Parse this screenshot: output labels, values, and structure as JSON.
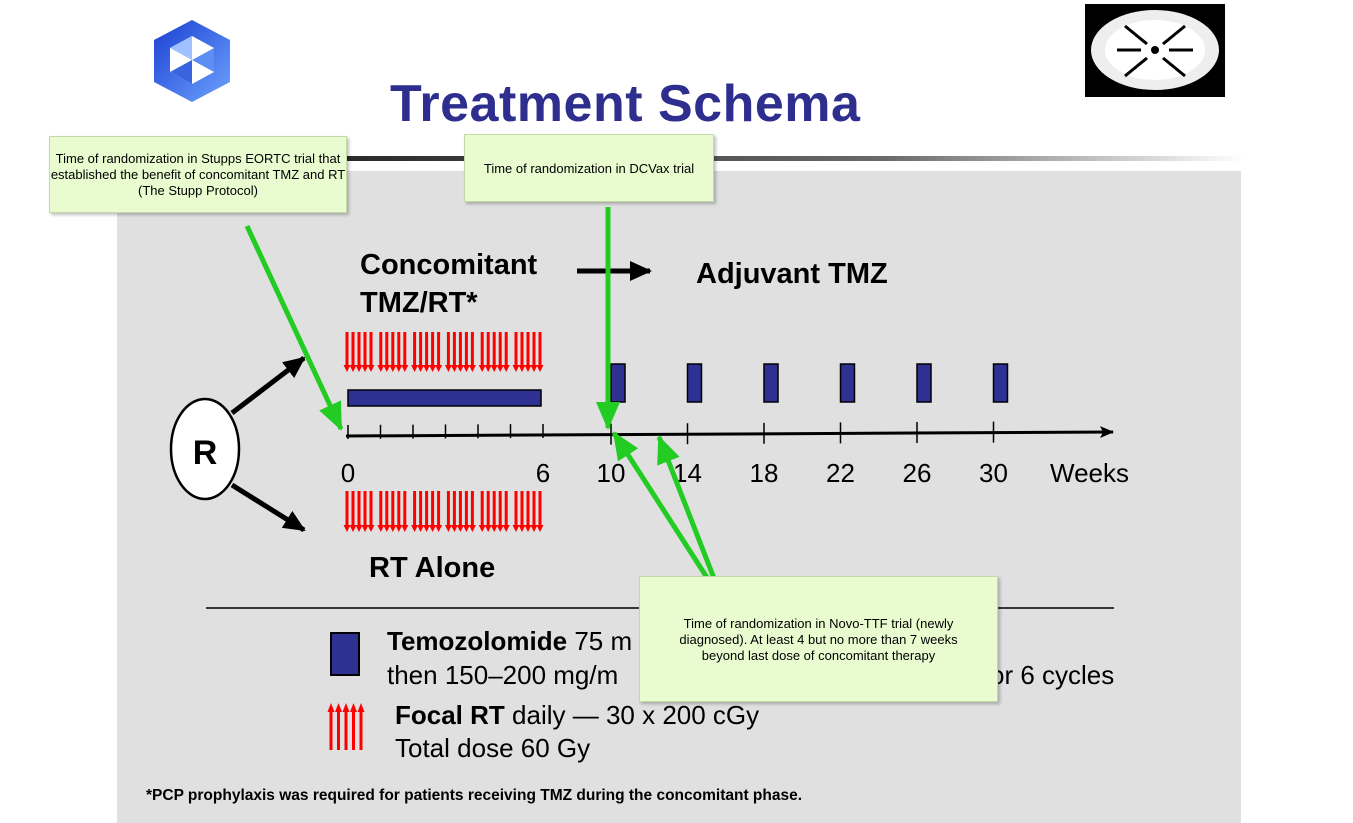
{
  "slide": {
    "title": "Treatment Schema",
    "footnote": "*PCP prophylaxis was required for patients receiving TMZ during the concomitant phase."
  },
  "diagram": {
    "randomize_label": "R",
    "concomitant_label_line1": "Concomitant",
    "concomitant_label_line2": "TMZ/RT*",
    "adjuvant_label": "Adjuvant TMZ",
    "rt_alone_label": "RT Alone",
    "axis_ticks": [
      "0",
      "6",
      "10",
      "14",
      "18",
      "22",
      "26",
      "30"
    ],
    "axis_unit": "Weeks"
  },
  "legend": {
    "temozolomide_bold": "Temozolomide",
    "temozolomide_rest_line1": "75 m",
    "temozolomide_line2": "then 150–200 mg/m",
    "temozolomide_line2_end": "or 6 cycles",
    "rt_bold": "Focal RT",
    "rt_rest_line1": "daily — 30 x 200 cGy",
    "rt_line2": "Total dose 60 Gy"
  },
  "notes": {
    "eortc": "Time of randomization in Stupps EORTC trial that established the benefit of concomitant TMZ and RT (The Stupp Protocol)",
    "dcvax": "Time of randomization in DCVax trial",
    "novo": "Time of randomization in Novo-TTF trial (newly diagnosed).  At least 4 but no more than 7 weeks beyond last dose of concomitant therapy"
  },
  "colors": {
    "title": "#2e2e8f",
    "tmz_block": "#2e3192",
    "rt_arrows": "#ff0000",
    "annotation_arrow": "#22cc22",
    "note_bg": "#e9fcd0",
    "panel_bg": "#e0e0e0"
  }
}
